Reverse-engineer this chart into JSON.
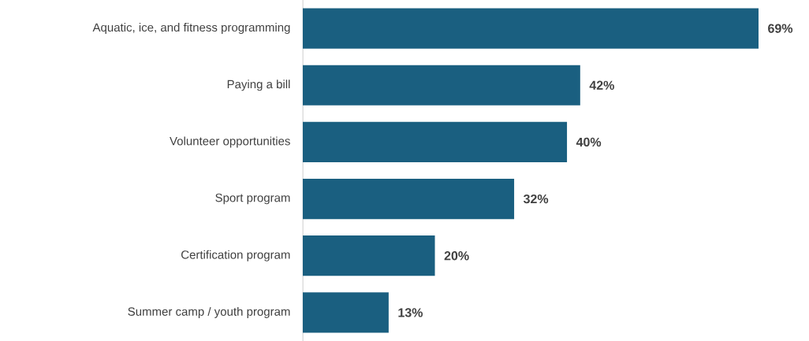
{
  "chart_data": {
    "type": "bar",
    "orientation": "horizontal",
    "categories": [
      "Aquatic, ice, and fitness programming",
      "Paying a bill",
      "Volunteer opportunities",
      "Sport program",
      "Certification program",
      "Summer camp / youth program"
    ],
    "values": [
      69,
      42,
      40,
      32,
      20,
      13
    ],
    "value_labels": [
      "69%",
      "42%",
      "40%",
      "32%",
      "20%",
      "13%"
    ],
    "color": "#1a5f80"
  }
}
